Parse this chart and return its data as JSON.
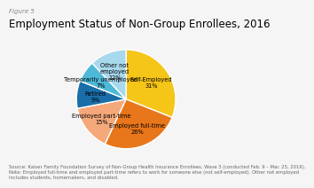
{
  "title": "Employment Status of Non-Group Enrollees, 2016",
  "figure_label": "Figure 5",
  "slices": [
    {
      "label": "Self-Employed\n31%",
      "value": 31,
      "color": "#F5C518"
    },
    {
      "label": "Employed full-time\n26%",
      "value": 26,
      "color": "#E8761A"
    },
    {
      "label": "Employed part-time\n15%",
      "value": 15,
      "color": "#F5A87A"
    },
    {
      "label": "Retired\n9%",
      "value": 9,
      "color": "#1A6EA8"
    },
    {
      "label": "Temporarily unemployed\n7%",
      "value": 7,
      "color": "#4DB8D8"
    },
    {
      "label": "Other not\nemployed\n12%",
      "value": 12,
      "color": "#A8D8EC"
    }
  ],
  "source_text": "Source: Kaiser Family Foundation Survey of Non-Group Health Insurance Enrollees, Wave 3 (conducted Feb. 9 – Mar. 25, 2016).\nNote: Employed full-time and employed part-time refers to work for someone else (not self-employed). Other not employed\nincludes students, homemakers, and disabled.",
  "title_fontsize": 8.5,
  "figure_label_fontsize": 5,
  "source_fontsize": 3.8,
  "label_fontsize": 4.8,
  "background_color": "#f5f5f5"
}
